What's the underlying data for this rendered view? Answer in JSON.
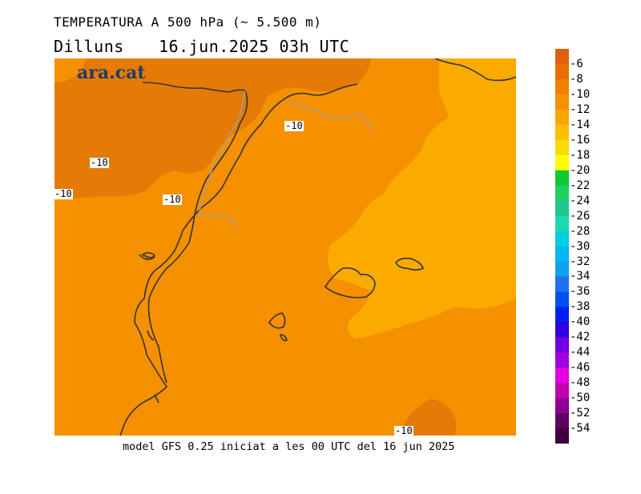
{
  "header": {
    "title": "TEMPERATURA A 500 hPa (~ 5.500 m)",
    "day": "Dilluns",
    "datetime": "16.jun.2025 03h UTC"
  },
  "brand": "ara.cat",
  "caption": "model GFS 0.25 iniciat a les 00 UTC del 16 jun 2025",
  "contour_labels": [
    "-10",
    "-10",
    "-10",
    "-10",
    "-10"
  ],
  "colorbar": {
    "ticks": [
      "-6",
      "-8",
      "-10",
      "-12",
      "-14",
      "-16",
      "-18",
      "-20",
      "-22",
      "-24",
      "-26",
      "-28",
      "-30",
      "-32",
      "-34",
      "-36",
      "-38",
      "-40",
      "-42",
      "-44",
      "-46",
      "-48",
      "-50",
      "-52",
      "-54"
    ],
    "colors": [
      "#e06010",
      "#e87000",
      "#f08000",
      "#f59000",
      "#f9a500",
      "#fbbf00",
      "#f9dc00",
      "#ffff00",
      "#10c830",
      "#20d060",
      "#20c890",
      "#20d8b0",
      "#00d0e0",
      "#00b8f0",
      "#10a0f0",
      "#2070f0",
      "#0050f0",
      "#0020f0",
      "#3000e0",
      "#7000e0",
      "#a000e0",
      "#e000e0",
      "#c000b0",
      "#900090",
      "#600060",
      "#400040"
    ]
  },
  "map_colors": {
    "warm": "#e57a05",
    "mid": "#f59000",
    "cool": "#fbab00",
    "border": "#a0a0a0",
    "coast": "#333333"
  }
}
